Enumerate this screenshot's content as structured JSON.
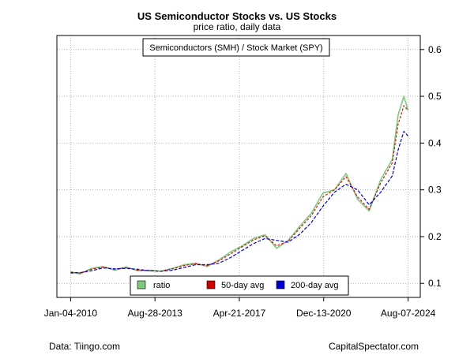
{
  "chart_data": {
    "type": "line",
    "title": "US Semiconductor Stocks vs. US Stocks",
    "subtitle": "price ratio, daily data",
    "inset_label": "Semiconductors (SMH) / Stock Market (SPY)",
    "x_tick_labels": [
      "Jan-04-2010",
      "Aug-28-2013",
      "Apr-21-2017",
      "Dec-13-2020",
      "Aug-07-2024"
    ],
    "y_tick_labels": [
      "0.1",
      "0.2",
      "0.3",
      "0.4",
      "0.5",
      "0.6"
    ],
    "ylim": [
      0.07,
      0.63
    ],
    "xlim": [
      "2009-06-01",
      "2025-02-15"
    ],
    "grid": true,
    "legend_placement": "bottom-center",
    "x": [
      "2010-01-04",
      "2010-06-01",
      "2010-12-01",
      "2011-06-01",
      "2011-12-01",
      "2012-06-01",
      "2012-12-01",
      "2013-06-01",
      "2013-12-01",
      "2014-06-01",
      "2014-12-01",
      "2015-06-01",
      "2015-12-01",
      "2016-06-01",
      "2016-12-01",
      "2017-06-01",
      "2017-12-01",
      "2018-06-01",
      "2018-12-01",
      "2019-06-01",
      "2019-12-01",
      "2020-06-01",
      "2020-12-01",
      "2021-06-01",
      "2021-12-01",
      "2022-06-01",
      "2022-12-01",
      "2023-06-01",
      "2023-12-01",
      "2024-03-01",
      "2024-06-01",
      "2024-08-07"
    ],
    "series": [
      {
        "name": "ratio",
        "color": "#7fc97f",
        "values": [
          0.125,
          0.12,
          0.132,
          0.136,
          0.128,
          0.135,
          0.127,
          0.128,
          0.126,
          0.132,
          0.14,
          0.143,
          0.136,
          0.15,
          0.167,
          0.18,
          0.196,
          0.204,
          0.175,
          0.192,
          0.222,
          0.25,
          0.293,
          0.3,
          0.335,
          0.28,
          0.255,
          0.322,
          0.365,
          0.46,
          0.5,
          0.47
        ]
      },
      {
        "name": "50-day avg",
        "color": "#cc0000",
        "values": [
          0.124,
          0.122,
          0.13,
          0.135,
          0.13,
          0.134,
          0.128,
          0.127,
          0.126,
          0.131,
          0.138,
          0.142,
          0.138,
          0.148,
          0.163,
          0.178,
          0.193,
          0.202,
          0.18,
          0.19,
          0.218,
          0.245,
          0.285,
          0.3,
          0.328,
          0.285,
          0.258,
          0.315,
          0.358,
          0.44,
          0.48,
          0.47
        ]
      },
      {
        "name": "200-day avg",
        "color": "#0000cc",
        "values": [
          0.122,
          0.123,
          0.127,
          0.133,
          0.131,
          0.132,
          0.13,
          0.127,
          0.126,
          0.128,
          0.134,
          0.14,
          0.14,
          0.143,
          0.155,
          0.17,
          0.185,
          0.196,
          0.192,
          0.188,
          0.205,
          0.23,
          0.265,
          0.295,
          0.312,
          0.3,
          0.268,
          0.295,
          0.33,
          0.385,
          0.425,
          0.415
        ]
      }
    ]
  },
  "footer": {
    "left": "Data: Tiingo.com",
    "right": "CapitalSpectator.com"
  }
}
